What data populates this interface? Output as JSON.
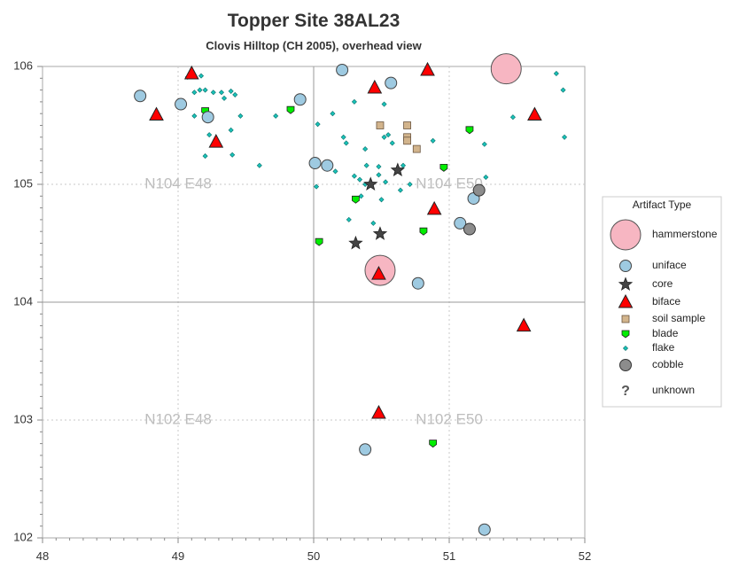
{
  "chart_data": {
    "type": "scatter",
    "title": "Topper Site 38AL23",
    "subtitle": "Clovis Hilltop (CH 2005), overhead view",
    "xlim": [
      48,
      52
    ],
    "ylim": [
      102,
      106
    ],
    "x_ticks": [
      "48",
      "49",
      "50",
      "51",
      "52"
    ],
    "y_ticks": [
      "102",
      "103",
      "104",
      "105",
      "106"
    ],
    "grid": "dotted at 49, 51 (x) and 103, 105 (y); solid at 50 (x) and 104 (y)",
    "grid_labels": [
      {
        "text": "N104 E48",
        "x": 49,
        "y": 105
      },
      {
        "text": "N104 E50",
        "x": 51,
        "y": 105
      },
      {
        "text": "N102 E48",
        "x": 49,
        "y": 103
      },
      {
        "text": "N102 E50",
        "x": 51,
        "y": 103
      }
    ],
    "legend": {
      "title": "Artifact Type",
      "placement": "right",
      "entries": [
        "hammerstone",
        "uniface",
        "core",
        "biface",
        "soil sample",
        "blade",
        "flake",
        "cobble",
        "unknown"
      ]
    },
    "colors": {
      "hammerstone": "#f7b6c2",
      "uniface": "#9ecae1",
      "core": "#444444",
      "biface": "#ff0000",
      "soil_sample": "#d2b48c",
      "blade": "#00ee00",
      "flake": "#19c2b8",
      "cobble": "#8c8c8c"
    },
    "series": [
      {
        "name": "hammerstone",
        "points": [
          [
            51.42,
            105.98
          ],
          [
            50.49,
            104.27
          ]
        ]
      },
      {
        "name": "uniface",
        "points": [
          [
            48.72,
            105.75
          ],
          [
            49.02,
            105.68
          ],
          [
            49.22,
            105.57
          ],
          [
            49.9,
            105.72
          ],
          [
            50.21,
            105.97
          ],
          [
            50.57,
            105.86
          ],
          [
            50.01,
            105.18
          ],
          [
            50.1,
            105.16
          ],
          [
            51.18,
            104.88
          ],
          [
            51.08,
            104.67
          ],
          [
            50.77,
            104.16
          ],
          [
            50.38,
            102.75
          ],
          [
            51.26,
            102.07
          ]
        ]
      },
      {
        "name": "core",
        "points": [
          [
            50.42,
            105.0
          ],
          [
            50.62,
            105.12
          ],
          [
            50.31,
            104.5
          ],
          [
            50.49,
            104.58
          ]
        ]
      },
      {
        "name": "biface",
        "points": [
          [
            49.1,
            105.94
          ],
          [
            48.84,
            105.59
          ],
          [
            49.28,
            105.36
          ],
          [
            50.45,
            105.82
          ],
          [
            50.84,
            105.97
          ],
          [
            51.63,
            105.59
          ],
          [
            50.89,
            104.79
          ],
          [
            50.48,
            104.24
          ],
          [
            51.55,
            103.8
          ],
          [
            50.48,
            103.06
          ]
        ]
      },
      {
        "name": "soil sample",
        "points": [
          [
            50.49,
            105.5
          ],
          [
            50.69,
            105.5
          ],
          [
            50.69,
            105.4
          ],
          [
            50.69,
            105.37
          ],
          [
            50.76,
            105.3
          ]
        ]
      },
      {
        "name": "blade",
        "points": [
          [
            49.2,
            105.62
          ],
          [
            49.83,
            105.63
          ],
          [
            51.15,
            105.46
          ],
          [
            50.31,
            104.87
          ],
          [
            50.96,
            105.14
          ],
          [
            50.04,
            104.51
          ],
          [
            50.81,
            104.6
          ],
          [
            50.88,
            102.8
          ]
        ]
      },
      {
        "name": "flake",
        "points": [
          [
            49.07,
            105.91
          ],
          [
            49.17,
            105.92
          ],
          [
            49.12,
            105.78
          ],
          [
            49.16,
            105.8
          ],
          [
            49.2,
            105.8
          ],
          [
            49.26,
            105.78
          ],
          [
            49.32,
            105.78
          ],
          [
            49.34,
            105.73
          ],
          [
            49.39,
            105.79
          ],
          [
            49.42,
            105.76
          ],
          [
            49.12,
            105.58
          ],
          [
            49.23,
            105.42
          ],
          [
            49.39,
            105.46
          ],
          [
            49.46,
            105.58
          ],
          [
            49.2,
            105.24
          ],
          [
            49.4,
            105.25
          ],
          [
            49.6,
            105.16
          ],
          [
            49.72,
            105.58
          ],
          [
            50.03,
            105.51
          ],
          [
            50.14,
            105.6
          ],
          [
            50.22,
            105.4
          ],
          [
            50.24,
            105.35
          ],
          [
            50.3,
            105.7
          ],
          [
            50.38,
            105.3
          ],
          [
            50.52,
            105.68
          ],
          [
            50.52,
            105.4
          ],
          [
            50.55,
            105.42
          ],
          [
            50.58,
            105.35
          ],
          [
            50.39,
            105.16
          ],
          [
            50.48,
            105.15
          ],
          [
            50.3,
            105.07
          ],
          [
            50.34,
            105.04
          ],
          [
            50.38,
            105.0
          ],
          [
            50.48,
            105.08
          ],
          [
            50.53,
            105.02
          ],
          [
            50.66,
            105.16
          ],
          [
            50.64,
            104.95
          ],
          [
            50.71,
            105.0
          ],
          [
            50.88,
            105.37
          ],
          [
            50.02,
            104.98
          ],
          [
            50.16,
            105.11
          ],
          [
            50.35,
            104.9
          ],
          [
            50.26,
            104.7
          ],
          [
            50.44,
            104.67
          ],
          [
            50.5,
            104.87
          ],
          [
            51.26,
            105.34
          ],
          [
            51.27,
            105.06
          ],
          [
            51.47,
            105.57
          ],
          [
            51.79,
            105.94
          ],
          [
            51.84,
            105.8
          ],
          [
            51.85,
            105.4
          ]
        ]
      },
      {
        "name": "cobble",
        "points": [
          [
            51.22,
            104.95
          ],
          [
            51.15,
            104.62
          ]
        ]
      }
    ]
  }
}
